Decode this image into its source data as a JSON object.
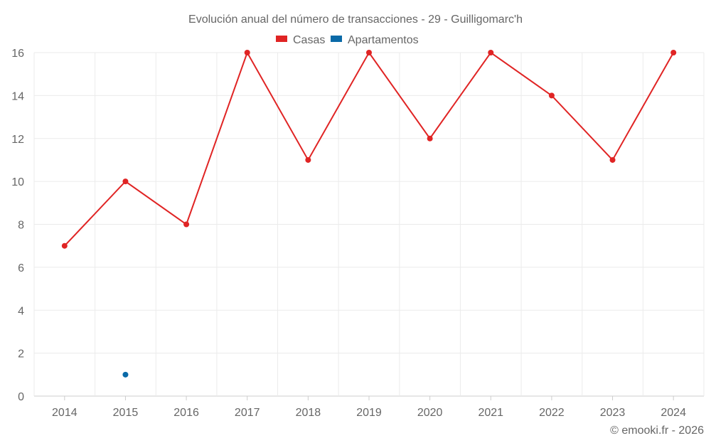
{
  "chart_data": {
    "type": "line",
    "title": "Evolución anual del número de transacciones - 29 - Guilligomarc'h",
    "categories": [
      "2014",
      "2015",
      "2016",
      "2017",
      "2018",
      "2019",
      "2020",
      "2021",
      "2022",
      "2023",
      "2024"
    ],
    "series": [
      {
        "name": "Casas",
        "color": "#e02424",
        "values": [
          7,
          10,
          8,
          16,
          11,
          16,
          12,
          16,
          14,
          11,
          16
        ]
      },
      {
        "name": "Apartamentos",
        "color": "#0a6aa8",
        "values": [
          null,
          1,
          null,
          null,
          null,
          null,
          null,
          null,
          null,
          null,
          null
        ]
      }
    ],
    "ylim": [
      0,
      16
    ],
    "yticks": [
      0,
      2,
      4,
      6,
      8,
      10,
      12,
      14,
      16
    ],
    "legend": "top-center",
    "grid": true,
    "xlabel": "",
    "ylabel": ""
  },
  "credit": "© emooki.fr - 2026"
}
